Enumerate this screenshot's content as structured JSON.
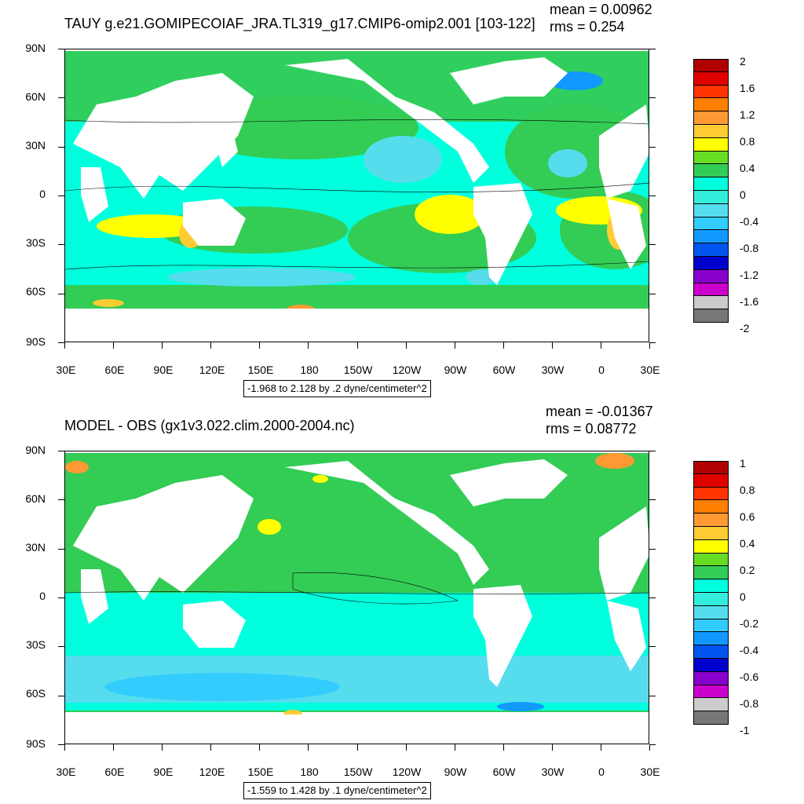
{
  "top": {
    "title": "TAUY g.e21.GOMIPECOIAF_JRA.TL319_g17.CMIP6-omip2.001 [103-122]",
    "mean": "mean = 0.00962",
    "rms": "rms = 0.254",
    "range_info": "-1.968 to 2.128 by .2 dyne/centimeter^2",
    "colorbar_labels": [
      "2",
      "1.6",
      "1.2",
      "0.8",
      "0.4",
      "0",
      "-0.4",
      "-0.8",
      "-1.2",
      "-1.6",
      "-2"
    ],
    "colorbar_colors": [
      "#b00000",
      "#e00000",
      "#ff3300",
      "#ff7f00",
      "#ff9933",
      "#ffcc33",
      "#ffff00",
      "#66dd22",
      "#33cc55",
      "#00ffdd",
      "#33eedd",
      "#55ddee",
      "#33ccff",
      "#1199ff",
      "#0055ee",
      "#0000cc",
      "#8800cc",
      "#cc00cc",
      "#cccccc",
      "#777777"
    ]
  },
  "bottom": {
    "title": "MODEL - OBS (gx1v3.022.clim.2000-2004.nc)",
    "mean": "mean = -0.01367",
    "rms": "rms = 0.08772",
    "range_info": "-1.559 to 1.428 by .1 dyne/centimeter^2",
    "colorbar_labels": [
      "1",
      "0.8",
      "0.6",
      "0.4",
      "0.2",
      "0",
      "-0.2",
      "-0.4",
      "-0.6",
      "-0.8",
      "-1"
    ],
    "colorbar_colors": [
      "#b00000",
      "#e00000",
      "#ff3300",
      "#ff7f00",
      "#ff9933",
      "#ffcc33",
      "#ffff00",
      "#66dd22",
      "#33cc55",
      "#00ffdd",
      "#33eedd",
      "#55ddee",
      "#33ccff",
      "#1199ff",
      "#0055ee",
      "#0000cc",
      "#8800cc",
      "#cc00cc",
      "#cccccc",
      "#777777"
    ]
  },
  "axes": {
    "lat_labels": [
      "90N",
      "60N",
      "30N",
      "0",
      "30S",
      "60S",
      "90S"
    ],
    "lon_labels": [
      "30E",
      "60E",
      "90E",
      "120E",
      "150E",
      "180",
      "150W",
      "120W",
      "90W",
      "60W",
      "30W",
      "0",
      "30E"
    ]
  },
  "colors": {
    "ocean_base": "#33cc55",
    "ocean_cyan": "#00ffdd",
    "ocean_lightblue": "#55ddee",
    "land": "#ffffff"
  }
}
